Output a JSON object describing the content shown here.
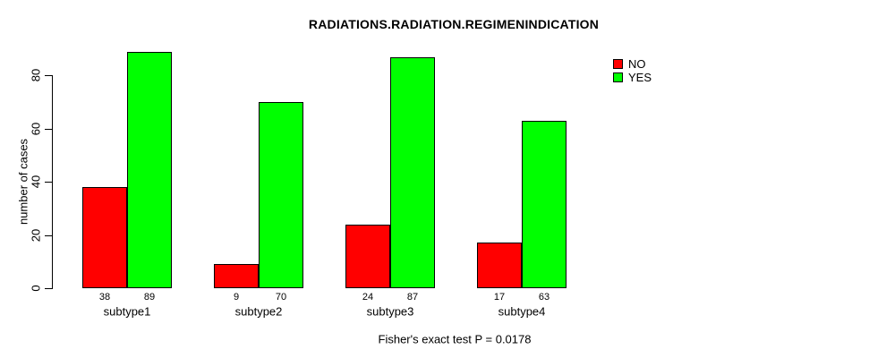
{
  "chart_data": {
    "type": "bar",
    "title": "RADIATIONS.RADIATION.REGIMENINDICATION",
    "ylabel": "number of cases",
    "xlabel": "",
    "caption": "Fisher's exact test P = 0.0178",
    "categories": [
      "subtype1",
      "subtype2",
      "subtype3",
      "subtype4"
    ],
    "series": [
      {
        "name": "NO",
        "color": "#ff0000",
        "values": [
          38,
          9,
          24,
          17
        ]
      },
      {
        "name": "YES",
        "color": "#00ff00",
        "values": [
          89,
          70,
          87,
          63
        ]
      }
    ],
    "yticks": [
      0,
      20,
      40,
      60,
      80
    ],
    "ylim": [
      0,
      89
    ],
    "grid": false,
    "bar_labels": true,
    "legend_position": "top-right",
    "colors": {
      "background": "#ffffff",
      "axis": "#000000",
      "text": "#000000"
    }
  }
}
